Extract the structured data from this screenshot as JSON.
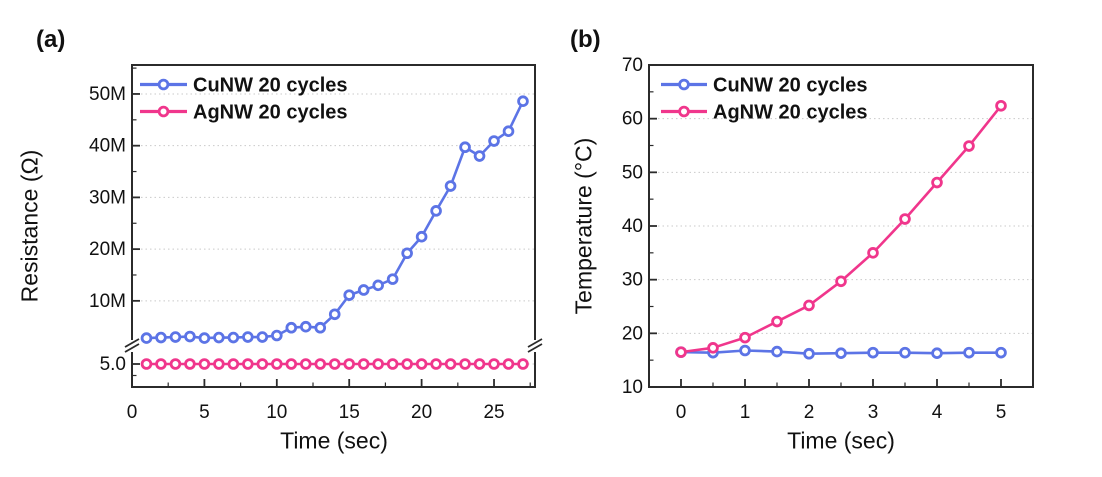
{
  "figure": {
    "background": "#ffffff",
    "frame_color": "#2b2b2b",
    "grid_color": "#c9c9c9",
    "text_color": "#111111"
  },
  "chart_data": [
    {
      "type": "line",
      "panel_tag": "(a)",
      "title": "",
      "xlabel": "Time (sec)",
      "ylabel": "Resistance (Ω)",
      "xlim": [
        0,
        27.83
      ],
      "x_tick_labels": [
        "0",
        "5",
        "10",
        "15",
        "20",
        "25"
      ],
      "x_tick_values": [
        0,
        5,
        10,
        15,
        20,
        25
      ],
      "y_axis": {
        "broken": true,
        "upper_unit": "MΩ",
        "y_tick_labels": [
          "10M",
          "20M",
          "30M",
          "40M",
          "50M"
        ],
        "y_tick_values": [
          10,
          20,
          30,
          40,
          50
        ],
        "upper_visible_range": [
          1.5,
          55.6
        ],
        "below_break_label": "5.0",
        "below_break_value": 5.0
      },
      "grid": "dotted horizontal at major y ticks",
      "legend_position": "top-left",
      "legend": [
        {
          "label": "CuNW 20 cycles",
          "color": "#5C74E6"
        },
        {
          "label": "AgNW 20 cycles",
          "color": "#F0368C"
        }
      ],
      "series": [
        {
          "name": "CuNW 20 cycles",
          "color": "#5C74E6",
          "unit": "MΩ",
          "region": "upper",
          "x": [
            1,
            2,
            3,
            4,
            5,
            6,
            7,
            8,
            9,
            10,
            11,
            12,
            13,
            14,
            15,
            16,
            17,
            18,
            19,
            20,
            21,
            22,
            23,
            24,
            25,
            26,
            27
          ],
          "y": [
            2.8,
            2.9,
            3.0,
            3.1,
            2.8,
            2.9,
            2.9,
            3.0,
            3.0,
            3.3,
            4.8,
            5.0,
            4.8,
            7.4,
            11.1,
            12.1,
            13.0,
            14.2,
            19.2,
            22.4,
            27.4,
            32.2,
            39.7,
            38.0,
            40.9,
            42.8,
            48.6
          ]
        },
        {
          "name": "AgNW 20 cycles",
          "color": "#F0368C",
          "unit": "Ω",
          "region": "below_break",
          "x": [
            1,
            2,
            3,
            4,
            5,
            6,
            7,
            8,
            9,
            10,
            11,
            12,
            13,
            14,
            15,
            16,
            17,
            18,
            19,
            20,
            21,
            22,
            23,
            24,
            25,
            26,
            27
          ],
          "y": [
            5.0,
            5.0,
            5.0,
            5.0,
            5.0,
            5.0,
            5.0,
            5.0,
            5.0,
            5.0,
            5.0,
            5.0,
            5.0,
            5.0,
            5.0,
            5.0,
            5.0,
            5.0,
            5.0,
            5.0,
            5.0,
            5.0,
            5.0,
            5.0,
            5.0,
            5.0,
            5.0
          ]
        }
      ]
    },
    {
      "type": "line",
      "panel_tag": "(b)",
      "title": "",
      "xlabel": "Time (sec)",
      "ylabel": "Temperature (°C)",
      "xlim": [
        -0.5,
        5.5
      ],
      "ylim": [
        10,
        70
      ],
      "x_tick_labels": [
        "0",
        "1",
        "2",
        "3",
        "4",
        "5"
      ],
      "x_tick_values": [
        0,
        1,
        2,
        3,
        4,
        5
      ],
      "y_tick_labels": [
        "10",
        "20",
        "30",
        "40",
        "50",
        "60",
        "70"
      ],
      "y_tick_values": [
        10,
        20,
        30,
        40,
        50,
        60,
        70
      ],
      "grid": "dotted horizontal at major y ticks",
      "legend_position": "top-left",
      "legend": [
        {
          "label": "CuNW 20 cycles",
          "color": "#5C74E6"
        },
        {
          "label": "AgNW 20 cycles",
          "color": "#F0368C"
        }
      ],
      "series": [
        {
          "name": "CuNW 20 cycles",
          "color": "#5C74E6",
          "unit": "°C",
          "x": [
            0,
            0.5,
            1,
            1.5,
            2,
            2.5,
            3,
            3.5,
            4,
            4.5,
            5
          ],
          "y": [
            16.5,
            16.4,
            16.8,
            16.6,
            16.2,
            16.3,
            16.4,
            16.4,
            16.3,
            16.4,
            16.4
          ]
        },
        {
          "name": "AgNW 20 cycles",
          "color": "#F0368C",
          "unit": "°C",
          "x": [
            0,
            0.5,
            1,
            1.5,
            2,
            2.5,
            3,
            3.5,
            4,
            4.5,
            5
          ],
          "y": [
            16.5,
            17.3,
            19.2,
            22.2,
            25.2,
            29.7,
            35.0,
            41.3,
            48.1,
            54.9,
            62.4
          ]
        }
      ]
    }
  ]
}
